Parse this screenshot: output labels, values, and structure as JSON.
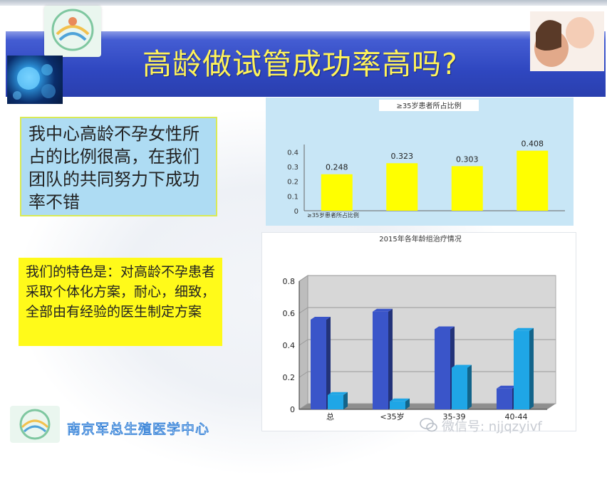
{
  "slide": {
    "title": "高龄做试管成功率高吗?",
    "box1_text": "我中心高龄不孕女性所占的比例很高，在我们团队的共同努力下成功率不错",
    "box2_text": "我们的特色是：对高龄不孕患者采取个体化方案，耐心，细致，全部由有经验的医生制定方案",
    "footer_text": "南京军总生殖医学中心",
    "wechat_text": "微信号: njjqzyivf"
  },
  "colors": {
    "banner": "#3550c8",
    "title": "#fff35a",
    "box1_bg": "#aedcf3",
    "box2_bg": "#fffa1a",
    "bar_yellow": "#ffff00",
    "bar_dark": "#3a55c9",
    "bar_light": "#1fa6e6"
  },
  "chart_data": [
    {
      "type": "bar",
      "title": "≥35岁患者所占比例",
      "categories": [
        "",
        "",
        "",
        ""
      ],
      "series": [
        {
          "name": "≥35岁患者所占比例",
          "values": [
            0.248,
            0.323,
            0.303,
            0.408
          ]
        }
      ],
      "data_labels": [
        "0.248",
        "0.323",
        "0.303",
        "0.408"
      ],
      "yticks": [
        "0",
        "0.1",
        "0.2",
        "0.3",
        "0.4"
      ],
      "ylim": [
        0,
        0.45
      ],
      "legend": "bottom-left",
      "grid": false
    },
    {
      "type": "bar",
      "title": "2015年各年龄组治疗情况",
      "categories": [
        "总",
        "<35岁",
        "35-39",
        "40-44"
      ],
      "series": [
        {
          "values": [
            0.56,
            0.61,
            0.5,
            0.13
          ]
        },
        {
          "values": [
            0.09,
            0.05,
            0.26,
            0.49
          ]
        }
      ],
      "yticks": [
        "0",
        "0.2",
        "0.4",
        "0.6",
        "0.8"
      ],
      "ylim": [
        0,
        0.8
      ],
      "style": "3d",
      "grid": true
    }
  ]
}
